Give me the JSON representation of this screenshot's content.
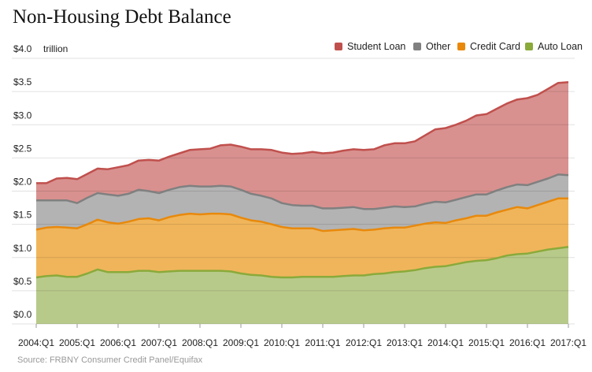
{
  "chart_data": {
    "type": "area",
    "stacked": true,
    "title": "Non-Housing Debt Balance",
    "source": "Source: FRBNY Consumer Credit Panel/Equifax",
    "y_unit_label": "trillion",
    "ylim": [
      0,
      4.0
    ],
    "y_ticks": [
      "$0.0",
      "$0.5",
      "$1.0",
      "$1.5",
      "$2.0",
      "$2.5",
      "$3.0",
      "$3.5",
      "$4.0"
    ],
    "x_ticks": [
      "2004:Q1",
      "2005:Q1",
      "2006:Q1",
      "2007:Q1",
      "2008:Q1",
      "2009:Q1",
      "2010:Q1",
      "2011:Q1",
      "2012:Q1",
      "2013:Q1",
      "2014:Q1",
      "2015:Q1",
      "2016:Q1",
      "2017:Q1"
    ],
    "grid": true,
    "legend_position": "top-right",
    "categories": [
      "2004:Q1",
      "2004:Q2",
      "2004:Q3",
      "2004:Q4",
      "2005:Q1",
      "2005:Q2",
      "2005:Q3",
      "2005:Q4",
      "2006:Q1",
      "2006:Q2",
      "2006:Q3",
      "2006:Q4",
      "2007:Q1",
      "2007:Q2",
      "2007:Q3",
      "2007:Q4",
      "2008:Q1",
      "2008:Q2",
      "2008:Q3",
      "2008:Q4",
      "2009:Q1",
      "2009:Q2",
      "2009:Q3",
      "2009:Q4",
      "2010:Q1",
      "2010:Q2",
      "2010:Q3",
      "2010:Q4",
      "2011:Q1",
      "2011:Q2",
      "2011:Q3",
      "2011:Q4",
      "2012:Q1",
      "2012:Q2",
      "2012:Q3",
      "2012:Q4",
      "2013:Q1",
      "2013:Q2",
      "2013:Q3",
      "2013:Q4",
      "2014:Q1",
      "2014:Q2",
      "2014:Q3",
      "2014:Q4",
      "2015:Q1",
      "2015:Q2",
      "2015:Q3",
      "2015:Q4",
      "2016:Q1",
      "2016:Q2",
      "2016:Q3",
      "2016:Q4",
      "2017:Q1"
    ],
    "series": [
      {
        "name": "Auto Loan",
        "fill": "#b8ca8a",
        "line": "#8aaa3a",
        "values": [
          0.7,
          0.72,
          0.73,
          0.71,
          0.71,
          0.76,
          0.82,
          0.78,
          0.78,
          0.78,
          0.8,
          0.8,
          0.78,
          0.79,
          0.8,
          0.8,
          0.8,
          0.8,
          0.8,
          0.79,
          0.76,
          0.74,
          0.73,
          0.71,
          0.7,
          0.7,
          0.71,
          0.71,
          0.71,
          0.71,
          0.72,
          0.73,
          0.73,
          0.75,
          0.76,
          0.78,
          0.79,
          0.81,
          0.84,
          0.86,
          0.87,
          0.9,
          0.93,
          0.95,
          0.96,
          0.99,
          1.03,
          1.05,
          1.06,
          1.09,
          1.12,
          1.14,
          1.16
        ]
      },
      {
        "name": "Credit Card",
        "fill": "#f0b55b",
        "line": "#e8890c",
        "values": [
          0.72,
          0.73,
          0.73,
          0.74,
          0.73,
          0.74,
          0.75,
          0.75,
          0.73,
          0.76,
          0.78,
          0.79,
          0.78,
          0.82,
          0.84,
          0.86,
          0.85,
          0.86,
          0.86,
          0.86,
          0.84,
          0.82,
          0.81,
          0.79,
          0.76,
          0.74,
          0.73,
          0.73,
          0.69,
          0.7,
          0.7,
          0.7,
          0.68,
          0.67,
          0.68,
          0.67,
          0.66,
          0.67,
          0.67,
          0.67,
          0.65,
          0.66,
          0.66,
          0.68,
          0.67,
          0.69,
          0.69,
          0.71,
          0.68,
          0.7,
          0.72,
          0.75,
          0.73
        ]
      },
      {
        "name": "Other",
        "fill": "#b3b3b3",
        "line": "#808080",
        "values": [
          0.44,
          0.41,
          0.4,
          0.41,
          0.38,
          0.4,
          0.4,
          0.42,
          0.42,
          0.42,
          0.44,
          0.41,
          0.41,
          0.41,
          0.42,
          0.42,
          0.42,
          0.41,
          0.42,
          0.42,
          0.42,
          0.4,
          0.39,
          0.39,
          0.36,
          0.35,
          0.34,
          0.34,
          0.34,
          0.33,
          0.33,
          0.33,
          0.32,
          0.31,
          0.31,
          0.32,
          0.31,
          0.29,
          0.3,
          0.31,
          0.31,
          0.31,
          0.32,
          0.32,
          0.32,
          0.33,
          0.34,
          0.34,
          0.35,
          0.35,
          0.35,
          0.36,
          0.35
        ]
      },
      {
        "name": "Student Loan",
        "fill": "#d8918f",
        "line": "#c0504d",
        "values": [
          0.26,
          0.26,
          0.33,
          0.34,
          0.36,
          0.36,
          0.37,
          0.38,
          0.43,
          0.43,
          0.44,
          0.47,
          0.49,
          0.5,
          0.51,
          0.54,
          0.56,
          0.57,
          0.61,
          0.63,
          0.65,
          0.67,
          0.7,
          0.73,
          0.76,
          0.77,
          0.79,
          0.81,
          0.83,
          0.84,
          0.86,
          0.87,
          0.89,
          0.9,
          0.94,
          0.95,
          0.96,
          0.98,
          1.03,
          1.09,
          1.12,
          1.13,
          1.15,
          1.19,
          1.21,
          1.23,
          1.26,
          1.28,
          1.31,
          1.31,
          1.35,
          1.38,
          1.4
        ]
      }
    ],
    "legend_order": [
      "Student Loan",
      "Other",
      "Credit Card",
      "Auto Loan"
    ]
  }
}
